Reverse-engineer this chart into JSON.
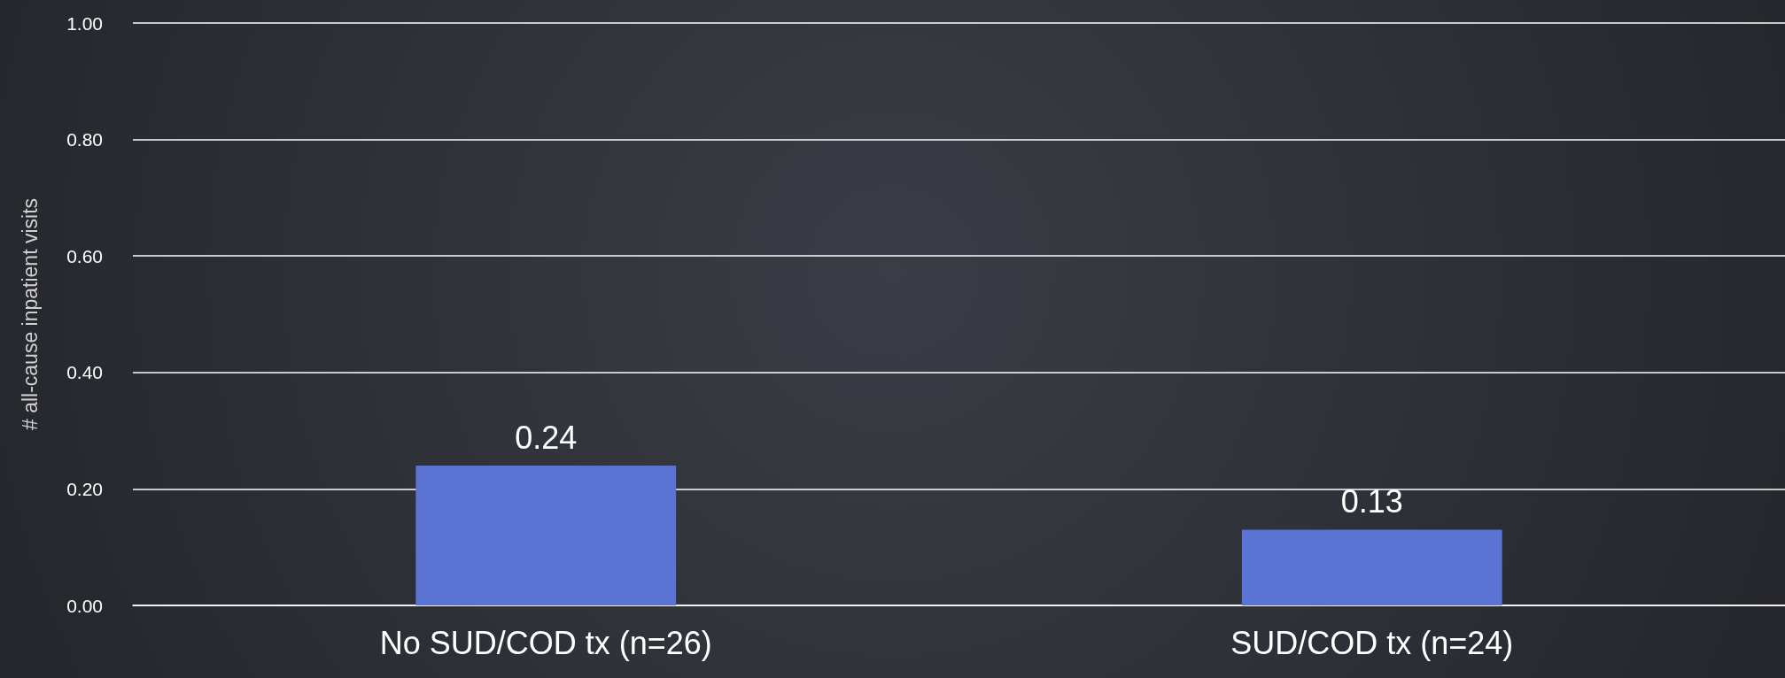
{
  "chart_data": {
    "type": "bar",
    "ylabel": "# all-cause inpatient visits",
    "categories": [
      "No SUD/COD tx (n=26)",
      "SUD/COD tx (n=24)"
    ],
    "values": [
      0.24,
      0.13
    ],
    "color": "#5b74d3",
    "ylim": [
      0,
      1
    ],
    "yticks": [
      {
        "value": 0,
        "label": "0.00"
      },
      {
        "value": 0.2,
        "label": "0.20"
      },
      {
        "value": 0.4,
        "label": "0.40"
      },
      {
        "value": 0.6,
        "label": "0.60"
      },
      {
        "value": 0.8,
        "label": "0.80"
      },
      {
        "value": 1,
        "label": "1.00"
      }
    ],
    "grid": "y",
    "data_labels": true
  }
}
